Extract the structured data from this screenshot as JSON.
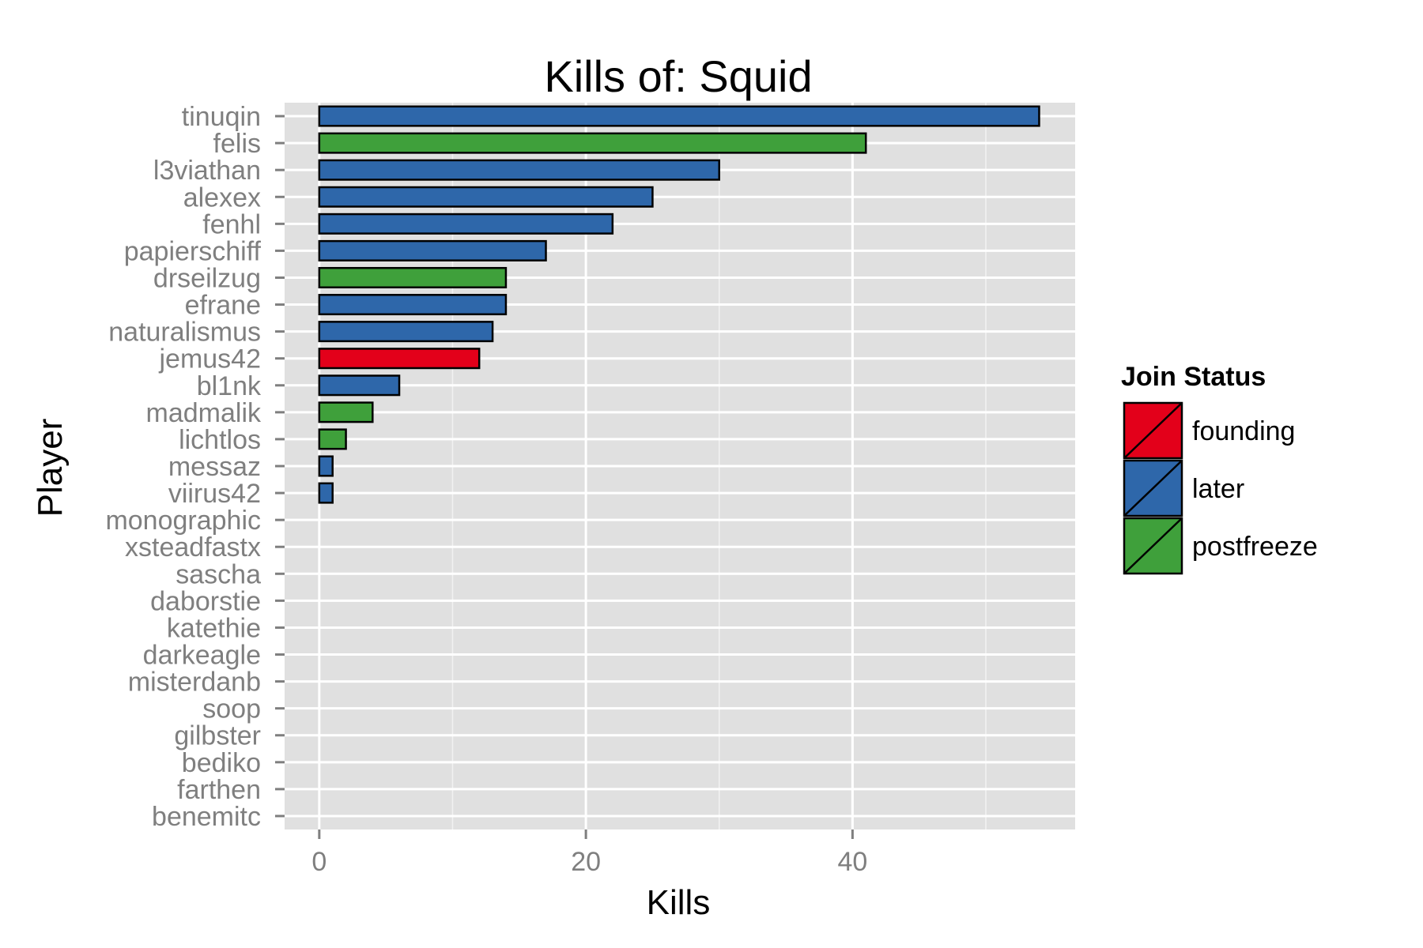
{
  "chart_data": {
    "type": "bar",
    "orientation": "horizontal",
    "title": "Kills of: Squid",
    "xlabel": "Kills",
    "ylabel": "Player",
    "xlim": [
      -2.6,
      56.7
    ],
    "xticks": [
      0,
      20,
      40
    ],
    "grid": true,
    "legend": {
      "title": "Join Status",
      "placement": "right",
      "entries": [
        {
          "label": "founding",
          "color": "#e3001a"
        },
        {
          "label": "later",
          "color": "#2e67aa"
        },
        {
          "label": "postfreeze",
          "color": "#3fa03b"
        }
      ]
    },
    "categories": [
      "tinuqin",
      "felis",
      "l3viathan",
      "alexex",
      "fenhl",
      "papierschiff",
      "drseilzug",
      "efrane",
      "naturalismus",
      "jemus42",
      "bl1nk",
      "madmalik",
      "lichtlos",
      "messaz",
      "viirus42",
      "monographic",
      "xsteadfastx",
      "sascha",
      "daborstie",
      "katethie",
      "darkeagle",
      "misterdanb",
      "soop",
      "gilbster",
      "bediko",
      "farthen",
      "benemitc"
    ],
    "values": [
      54,
      41,
      30,
      25,
      22,
      17,
      14,
      14,
      13,
      12,
      6,
      4,
      2,
      1,
      1,
      0,
      0,
      0,
      0,
      0,
      0,
      0,
      0,
      0,
      0,
      0,
      0
    ],
    "groups": [
      "later",
      "postfreeze",
      "later",
      "later",
      "later",
      "later",
      "postfreeze",
      "later",
      "later",
      "founding",
      "later",
      "postfreeze",
      "postfreeze",
      "later",
      "later",
      "later",
      "later",
      "later",
      "later",
      "later",
      "later",
      "later",
      "later",
      "later",
      "later",
      "later",
      "later"
    ]
  }
}
